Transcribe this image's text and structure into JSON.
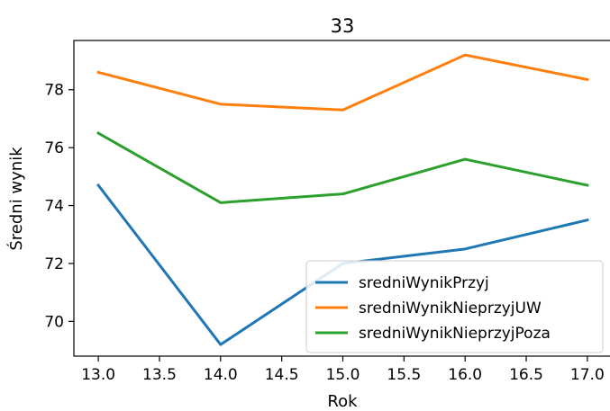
{
  "chart_data": {
    "type": "line",
    "title": "33",
    "xlabel": "Rok",
    "ylabel": "Średni wynik",
    "x": [
      13.0,
      14.0,
      15.0,
      16.0,
      17.0
    ],
    "xlim": [
      12.8,
      17.2
    ],
    "ylim": [
      68.8,
      79.7
    ],
    "xticks": [
      "13.0",
      "13.5",
      "14.0",
      "14.5",
      "15.0",
      "15.5",
      "16.0",
      "16.5",
      "17.0"
    ],
    "yticks": [
      "70",
      "72",
      "74",
      "76",
      "78"
    ],
    "grid": false,
    "legend_position": "lower-right",
    "series": [
      {
        "name": "sredniWynikPrzyj",
        "color": "#1f77b4",
        "values": [
          74.7,
          69.2,
          72.0,
          72.5,
          73.5
        ]
      },
      {
        "name": "sredniWynikNieprzyjUW",
        "color": "#ff7f0e",
        "values": [
          78.6,
          77.5,
          77.3,
          79.2,
          78.35
        ]
      },
      {
        "name": "sredniWynikNieprzyjPoza",
        "color": "#2ca02c",
        "values": [
          76.5,
          74.1,
          74.4,
          75.6,
          74.7
        ]
      }
    ]
  }
}
